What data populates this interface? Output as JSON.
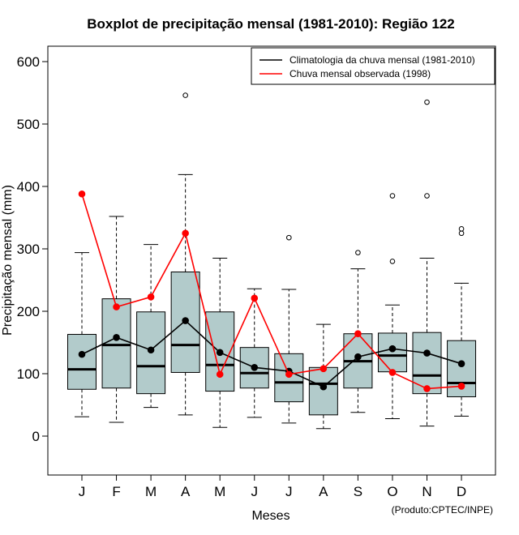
{
  "chart_data": {
    "type": "boxplot",
    "title": "Boxplot de precipitação mensal (1981-2010): Região 122",
    "xlabel": "Meses",
    "ylabel": "Precipitação mensal (mm)",
    "ylim": [
      -60,
      615
    ],
    "yticks": [
      0,
      100,
      200,
      300,
      400,
      500,
      600
    ],
    "categories": [
      "J",
      "F",
      "M",
      "A",
      "M",
      "J",
      "J",
      "A",
      "S",
      "O",
      "N",
      "D"
    ],
    "boxes": [
      {
        "whisker_low": 31,
        "q1": 75,
        "median": 107,
        "q3": 163,
        "whisker_high": 294,
        "outliers": []
      },
      {
        "whisker_low": 22,
        "q1": 77,
        "median": 146,
        "q3": 220,
        "whisker_high": 352,
        "outliers": []
      },
      {
        "whisker_low": 46,
        "q1": 68,
        "median": 112,
        "q3": 199,
        "whisker_high": 307,
        "outliers": []
      },
      {
        "whisker_low": 34,
        "q1": 102,
        "median": 146,
        "q3": 263,
        "whisker_high": 419,
        "outliers": [
          546
        ]
      },
      {
        "whisker_low": 14,
        "q1": 72,
        "median": 114,
        "q3": 199,
        "whisker_high": 285,
        "outliers": []
      },
      {
        "whisker_low": 30,
        "q1": 77,
        "median": 101,
        "q3": 142,
        "whisker_high": 236,
        "outliers": []
      },
      {
        "whisker_low": 21,
        "q1": 55,
        "median": 86,
        "q3": 132,
        "whisker_high": 235,
        "outliers": [
          318
        ]
      },
      {
        "whisker_low": 12,
        "q1": 34,
        "median": 84,
        "q3": 110,
        "whisker_high": 179,
        "outliers": []
      },
      {
        "whisker_low": 38,
        "q1": 77,
        "median": 120,
        "q3": 164,
        "whisker_high": 268,
        "outliers": [
          294
        ]
      },
      {
        "whisker_low": 28,
        "q1": 103,
        "median": 129,
        "q3": 165,
        "whisker_high": 210,
        "outliers": [
          280,
          385
        ]
      },
      {
        "whisker_low": 16,
        "q1": 68,
        "median": 97,
        "q3": 166,
        "whisker_high": 285,
        "outliers": [
          385,
          535
        ]
      },
      {
        "whisker_low": 32,
        "q1": 63,
        "median": 85,
        "q3": 153,
        "whisker_high": 245,
        "outliers": [
          325,
          332
        ]
      }
    ],
    "series": [
      {
        "name": "Climatologia da chuva mensal (1981-2010)",
        "color": "#000000",
        "values": [
          131,
          158,
          138,
          185,
          134,
          110,
          104,
          79,
          127,
          140,
          133,
          116
        ]
      },
      {
        "name": "Chuva mensal observada (1998)",
        "color": "#ff0000",
        "values": [
          388,
          207,
          223,
          325,
          99,
          221,
          99,
          108,
          164,
          102,
          76,
          80
        ]
      }
    ],
    "legend_position": "top-right",
    "box_fill": "#b2cbcb",
    "grid": false
  },
  "credit": "(Produto:CPTEC/INPE)"
}
